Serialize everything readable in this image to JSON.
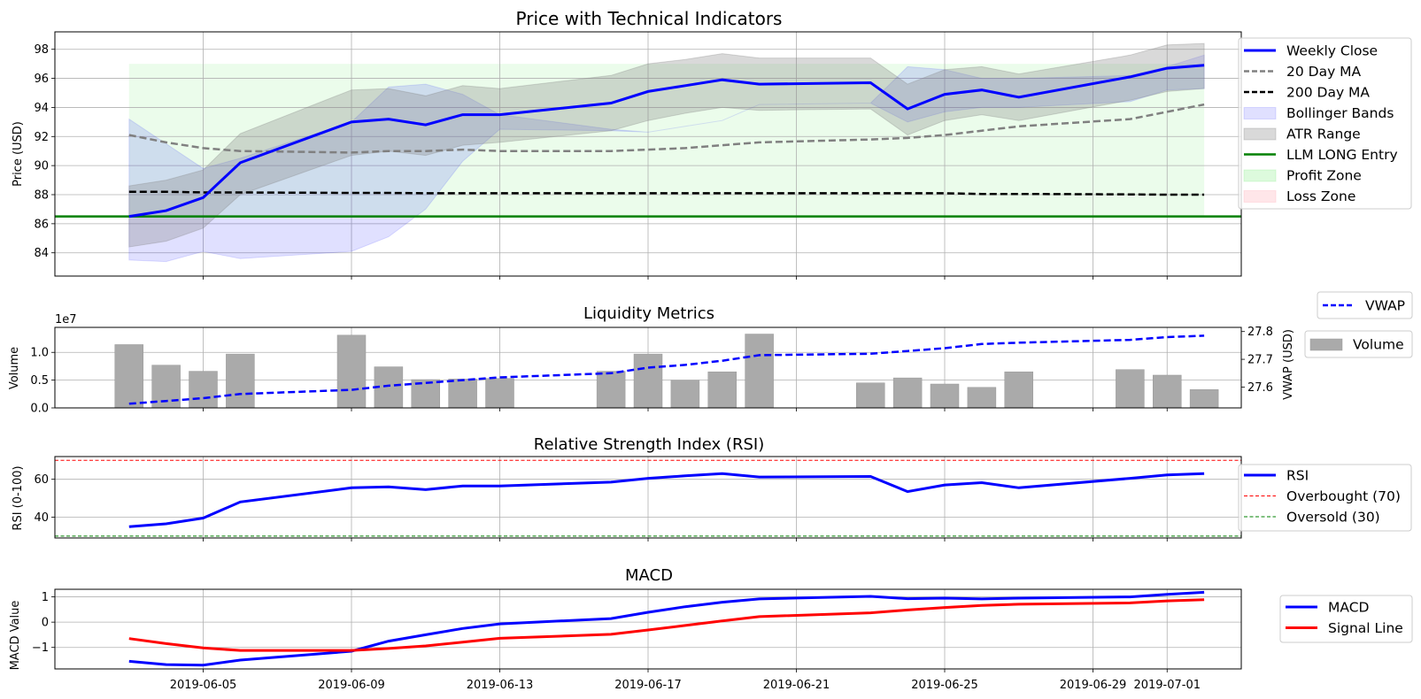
{
  "chart_data": [
    {
      "type": "line",
      "title": "Price with Technical Indicators",
      "xlabel": "",
      "ylabel": "Price (USD)",
      "ylim": [
        82.4,
        99.2
      ],
      "yticks": [
        84,
        86,
        88,
        90,
        92,
        94,
        96,
        98
      ],
      "grid": true,
      "legend_position": "right",
      "x": [
        "2019-06-03",
        "2019-06-04",
        "2019-06-05",
        "2019-06-06",
        "2019-06-09",
        "2019-06-10",
        "2019-06-11",
        "2019-06-12",
        "2019-06-13",
        "2019-06-16",
        "2019-06-17",
        "2019-06-18",
        "2019-06-19",
        "2019-06-20",
        "2019-06-23",
        "2019-06-24",
        "2019-06-25",
        "2019-06-26",
        "2019-06-27",
        "2019-06-30",
        "2019-07-01",
        "2019-07-02"
      ],
      "series": [
        {
          "name": "Weekly Close",
          "style": "line",
          "color": "#0000ff",
          "values": [
            86.5,
            86.9,
            87.8,
            90.2,
            93.0,
            93.2,
            92.8,
            93.5,
            93.5,
            94.3,
            95.1,
            95.5,
            95.9,
            95.6,
            95.7,
            93.9,
            94.9,
            95.2,
            94.7,
            96.1,
            96.7,
            96.9
          ]
        },
        {
          "name": "20 Day MA",
          "style": "dashed",
          "color": "#808080",
          "values": [
            92.1,
            91.6,
            91.2,
            91.0,
            90.9,
            91.0,
            91.0,
            91.1,
            91.0,
            91.0,
            91.1,
            91.2,
            91.4,
            91.6,
            91.8,
            91.9,
            92.1,
            92.4,
            92.7,
            93.2,
            93.7,
            94.2
          ]
        },
        {
          "name": "200 Day MA",
          "style": "dashed",
          "color": "#000000",
          "values": [
            88.2,
            88.2,
            88.15,
            88.15,
            88.12,
            88.12,
            88.1,
            88.1,
            88.1,
            88.1,
            88.1,
            88.1,
            88.1,
            88.1,
            88.1,
            88.1,
            88.1,
            88.05,
            88.05,
            88.02,
            88.0,
            88.0
          ]
        },
        {
          "name": "Bollinger Bands",
          "style": "band",
          "color": "#0000ff",
          "upper": [
            93.2,
            91.5,
            89.8,
            90.5,
            93.0,
            95.4,
            95.6,
            94.9,
            93.5,
            92.5,
            92.3,
            92.7,
            93.1,
            94.2,
            94.3,
            96.8,
            96.6,
            96.0,
            96.0,
            96.2,
            96.8,
            97.6
          ],
          "lower": [
            83.5,
            83.4,
            84.1,
            83.6,
            84.1,
            85.1,
            87.0,
            90.3,
            92.5,
            92.4,
            92.3,
            92.7,
            93.1,
            94.2,
            94.3,
            93.0,
            93.7,
            94.0,
            94.0,
            94.4,
            95.2,
            95.3
          ]
        },
        {
          "name": "ATR Range",
          "style": "band",
          "color": "#808080",
          "upper": [
            88.6,
            89.0,
            89.7,
            92.2,
            95.2,
            95.3,
            94.8,
            95.5,
            95.3,
            96.2,
            97.0,
            97.3,
            97.7,
            97.4,
            97.4,
            95.6,
            96.6,
            96.8,
            96.3,
            97.6,
            98.3,
            98.4
          ],
          "lower": [
            84.4,
            84.8,
            85.7,
            88.0,
            90.7,
            91.0,
            90.7,
            91.4,
            91.6,
            92.4,
            93.1,
            93.6,
            94.0,
            93.8,
            93.9,
            92.1,
            93.1,
            93.5,
            93.1,
            94.5,
            95.1,
            95.3
          ]
        },
        {
          "name": "LLM LONG Entry",
          "style": "hline",
          "color": "#008000",
          "value": 86.5
        },
        {
          "name": "Profit Zone",
          "style": "zone",
          "color": "#90ee90",
          "from": 86.5,
          "to": 97.0
        },
        {
          "name": "Loss Zone",
          "style": "zone",
          "color": "#ffb6c1",
          "from": null,
          "to": null
        }
      ]
    },
    {
      "type": "bar",
      "title": "Liquidity Metrics",
      "ylabel": "Volume",
      "y_offset_label": "1e7",
      "ylim": [
        0,
        1.45
      ],
      "yticks": [
        "0.0",
        "0.5",
        "1.0"
      ],
      "y2label": "VWAP (USD)",
      "y2lim": [
        27.525,
        27.815
      ],
      "y2ticks": [
        "27.6",
        "27.7",
        "27.8"
      ],
      "x": [
        "2019-06-03",
        "2019-06-04",
        "2019-06-05",
        "2019-06-06",
        "2019-06-09",
        "2019-06-10",
        "2019-06-11",
        "2019-06-12",
        "2019-06-13",
        "2019-06-16",
        "2019-06-17",
        "2019-06-18",
        "2019-06-19",
        "2019-06-20",
        "2019-06-23",
        "2019-06-24",
        "2019-06-25",
        "2019-06-26",
        "2019-06-27",
        "2019-06-30",
        "2019-07-01",
        "2019-07-02"
      ],
      "series": [
        {
          "name": "Volume",
          "style": "bar",
          "color": "#aaaaaa",
          "values": [
            1.14,
            0.77,
            0.66,
            0.97,
            1.31,
            0.74,
            0.51,
            0.52,
            0.53,
            0.66,
            0.97,
            0.5,
            0.65,
            1.33,
            0.45,
            0.54,
            0.43,
            0.37,
            0.65,
            0.69,
            0.59,
            0.33
          ]
        },
        {
          "name": "VWAP",
          "style": "dashed",
          "color": "#0000ff",
          "axis": "right",
          "values": [
            27.54,
            27.55,
            27.56,
            27.575,
            27.59,
            27.605,
            27.615,
            27.625,
            27.635,
            27.65,
            27.67,
            27.68,
            27.695,
            27.715,
            27.72,
            27.73,
            27.74,
            27.755,
            27.76,
            27.77,
            27.78,
            27.785
          ]
        }
      ]
    },
    {
      "type": "line",
      "title": "Relative Strength Index (RSI)",
      "ylabel": "RSI (0-100)",
      "ylim": [
        29,
        72
      ],
      "yticks": [
        40,
        60
      ],
      "x": [
        "2019-06-03",
        "2019-06-04",
        "2019-06-05",
        "2019-06-06",
        "2019-06-09",
        "2019-06-10",
        "2019-06-11",
        "2019-06-12",
        "2019-06-13",
        "2019-06-16",
        "2019-06-17",
        "2019-06-18",
        "2019-06-19",
        "2019-06-20",
        "2019-06-23",
        "2019-06-24",
        "2019-06-25",
        "2019-06-26",
        "2019-06-27",
        "2019-06-30",
        "2019-07-01",
        "2019-07-02"
      ],
      "series": [
        {
          "name": "RSI",
          "style": "line",
          "color": "#0000ff",
          "values": [
            35.0,
            36.5,
            39.5,
            48.0,
            55.5,
            56.0,
            54.5,
            56.5,
            56.5,
            58.5,
            60.5,
            61.8,
            63.0,
            61.2,
            61.5,
            53.5,
            57.0,
            58.2,
            55.5,
            60.5,
            62.3,
            63.0
          ]
        },
        {
          "name": "Overbought (70)",
          "style": "hline",
          "color": "#ff0000",
          "value": 70
        },
        {
          "name": "Oversold (30)",
          "style": "hline",
          "color": "#008000",
          "value": 30
        }
      ]
    },
    {
      "type": "line",
      "title": "MACD",
      "ylabel": "MACD Value",
      "ylim": [
        -1.85,
        1.3
      ],
      "yticks": [
        -1,
        0,
        1
      ],
      "x": [
        "2019-06-03",
        "2019-06-04",
        "2019-06-05",
        "2019-06-06",
        "2019-06-09",
        "2019-06-10",
        "2019-06-11",
        "2019-06-12",
        "2019-06-13",
        "2019-06-16",
        "2019-06-17",
        "2019-06-18",
        "2019-06-19",
        "2019-06-20",
        "2019-06-23",
        "2019-06-24",
        "2019-06-25",
        "2019-06-26",
        "2019-06-27",
        "2019-06-30",
        "2019-07-01",
        "2019-07-02"
      ],
      "series": [
        {
          "name": "MACD",
          "style": "line",
          "color": "#0000ff",
          "values": [
            -1.55,
            -1.68,
            -1.7,
            -1.5,
            -1.15,
            -0.75,
            -0.5,
            -0.25,
            -0.07,
            0.14,
            0.39,
            0.61,
            0.79,
            0.92,
            1.02,
            0.93,
            0.95,
            0.92,
            0.95,
            1.0,
            1.1,
            1.18
          ]
        },
        {
          "name": "Signal Line",
          "style": "line",
          "color": "#ff0000",
          "values": [
            -0.65,
            -0.85,
            -1.02,
            -1.12,
            -1.12,
            -1.04,
            -0.94,
            -0.79,
            -0.64,
            -0.48,
            -0.31,
            -0.13,
            0.05,
            0.22,
            0.37,
            0.48,
            0.58,
            0.66,
            0.71,
            0.76,
            0.84,
            0.89
          ]
        }
      ]
    }
  ],
  "x_axis": {
    "tick_labels": [
      "2019-06-05",
      "2019-06-09",
      "2019-06-13",
      "2019-06-17",
      "2019-06-21",
      "2019-06-25",
      "2019-06-29",
      "2019-07-01"
    ]
  }
}
